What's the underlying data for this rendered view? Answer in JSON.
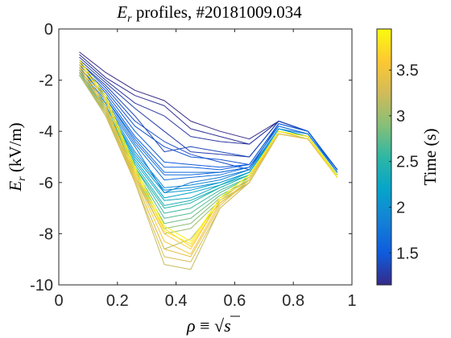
{
  "chart_data": {
    "type": "line",
    "title": {
      "main": "E",
      "sub": "r",
      "rest": " profiles, #20181009.034"
    },
    "xlabel": {
      "rho": "ρ",
      "equiv": " ≡ ",
      "sqrt": "√",
      "s": "s"
    },
    "ylabel": {
      "main": "E",
      "sub": "r",
      "rest": " (kV/m)"
    },
    "xlim": [
      0,
      1
    ],
    "ylim": [
      -10,
      0
    ],
    "xticks": [
      0,
      0.2,
      0.4,
      0.6,
      0.8,
      1
    ],
    "xtick_labels": [
      "0",
      "0.2",
      "0.4",
      "0.6",
      "0.8",
      "1"
    ],
    "yticks": [
      -10,
      -8,
      -6,
      -4,
      -2,
      0
    ],
    "ytick_labels": [
      "-10",
      "-8",
      "-6",
      "-4",
      "-2",
      "0"
    ],
    "grid": false,
    "x": [
      0.07,
      0.16,
      0.26,
      0.36,
      0.45,
      0.55,
      0.65,
      0.75,
      0.85,
      0.95
    ],
    "series": [
      {
        "t": 1.15,
        "values": [
          -0.9,
          -1.7,
          -2.4,
          -2.8,
          -3.6,
          -4.0,
          -4.3,
          -3.6,
          -4.0,
          -5.5
        ]
      },
      {
        "t": 1.2,
        "values": [
          -1.0,
          -1.9,
          -2.6,
          -3.0,
          -3.9,
          -4.2,
          -4.5,
          -3.6,
          -4.0,
          -5.5
        ]
      },
      {
        "t": 1.25,
        "values": [
          -1.1,
          -2.0,
          -2.9,
          -3.4,
          -4.2,
          -4.4,
          -4.5,
          -3.6,
          -4.0,
          -5.5
        ]
      },
      {
        "t": 1.3,
        "values": [
          -1.2,
          -2.1,
          -3.1,
          -4.0,
          -4.8,
          -4.9,
          -5.0,
          -3.6,
          -4.0,
          -5.5
        ]
      },
      {
        "t": 1.35,
        "values": [
          -1.3,
          -2.2,
          -3.4,
          -4.8,
          -4.6,
          -4.8,
          -5.0,
          -3.6,
          -4.0,
          -5.5
        ]
      },
      {
        "t": 1.4,
        "values": [
          -1.3,
          -2.3,
          -3.6,
          -4.4,
          -4.9,
          -5.2,
          -5.5,
          -3.7,
          -4.0,
          -5.5
        ]
      },
      {
        "t": 1.45,
        "values": [
          -1.4,
          -2.4,
          -3.8,
          -4.6,
          -5.0,
          -5.1,
          -5.3,
          -3.7,
          -4.0,
          -5.5
        ]
      },
      {
        "t": 1.5,
        "values": [
          -1.4,
          -2.5,
          -4.0,
          -5.2,
          -5.3,
          -5.4,
          -5.3,
          -3.7,
          -4.0,
          -5.5
        ]
      },
      {
        "t": 1.55,
        "values": [
          -1.5,
          -2.6,
          -4.2,
          -5.4,
          -5.4,
          -5.5,
          -5.3,
          -3.7,
          -4.0,
          -5.6
        ]
      },
      {
        "t": 1.6,
        "values": [
          -1.5,
          -2.7,
          -4.3,
          -5.6,
          -5.6,
          -5.6,
          -5.4,
          -3.8,
          -4.1,
          -5.6
        ]
      },
      {
        "t": 1.65,
        "values": [
          -1.5,
          -2.7,
          -4.4,
          -5.7,
          -5.7,
          -5.6,
          -5.4,
          -3.8,
          -4.1,
          -5.6
        ]
      },
      {
        "t": 1.7,
        "values": [
          -1.6,
          -2.8,
          -4.5,
          -5.9,
          -5.8,
          -5.7,
          -5.4,
          -3.8,
          -4.1,
          -5.6
        ]
      },
      {
        "t": 1.8,
        "values": [
          -1.6,
          -2.9,
          -4.6,
          -6.4,
          -6.0,
          -5.8,
          -5.5,
          -3.9,
          -4.1,
          -5.6
        ]
      },
      {
        "t": 1.9,
        "values": [
          -1.6,
          -2.9,
          -4.8,
          -6.2,
          -6.1,
          -5.9,
          -5.5,
          -3.9,
          -4.2,
          -5.7
        ]
      },
      {
        "t": 2.0,
        "values": [
          -1.7,
          -3.0,
          -4.9,
          -6.3,
          -6.2,
          -6.0,
          -5.6,
          -3.9,
          -4.2,
          -5.7
        ]
      },
      {
        "t": 2.1,
        "values": [
          -1.7,
          -3.0,
          -5.0,
          -6.4,
          -6.3,
          -6.0,
          -5.6,
          -3.9,
          -4.2,
          -5.7
        ]
      },
      {
        "t": 2.2,
        "values": [
          -1.7,
          -3.0,
          -5.1,
          -6.6,
          -6.4,
          -6.1,
          -5.6,
          -4.0,
          -4.2,
          -5.7
        ]
      },
      {
        "t": 2.3,
        "values": [
          -1.7,
          -3.1,
          -5.2,
          -6.7,
          -6.6,
          -6.1,
          -5.7,
          -4.0,
          -4.2,
          -5.7
        ]
      },
      {
        "t": 2.4,
        "values": [
          -1.8,
          -3.1,
          -5.3,
          -6.9,
          -6.7,
          -6.2,
          -5.7,
          -4.0,
          -4.2,
          -5.7
        ]
      },
      {
        "t": 2.5,
        "values": [
          -1.8,
          -3.1,
          -5.4,
          -7.0,
          -6.8,
          -6.2,
          -5.7,
          -4.0,
          -4.2,
          -5.7
        ]
      },
      {
        "t": 2.6,
        "values": [
          -1.8,
          -3.2,
          -5.4,
          -7.2,
          -7.0,
          -6.3,
          -5.8,
          -4.0,
          -4.2,
          -5.7
        ]
      },
      {
        "t": 2.7,
        "values": [
          -1.8,
          -3.2,
          -5.5,
          -7.4,
          -7.2,
          -6.4,
          -5.8,
          -4.0,
          -4.2,
          -5.7
        ]
      },
      {
        "t": 2.8,
        "values": [
          -1.8,
          -3.3,
          -5.6,
          -7.6,
          -7.4,
          -6.5,
          -5.9,
          -4.0,
          -4.3,
          -5.8
        ]
      },
      {
        "t": 2.9,
        "values": [
          -1.8,
          -3.3,
          -5.7,
          -7.8,
          -7.6,
          -6.6,
          -5.9,
          -4.0,
          -4.3,
          -5.8
        ]
      },
      {
        "t": 3.0,
        "values": [
          -1.8,
          -3.3,
          -5.8,
          -8.0,
          -7.8,
          -6.7,
          -6.0,
          -4.1,
          -4.3,
          -5.8
        ]
      },
      {
        "t": 3.1,
        "values": [
          -1.8,
          -3.4,
          -5.9,
          -8.6,
          -8.2,
          -6.8,
          -6.0,
          -4.1,
          -4.3,
          -5.8
        ]
      },
      {
        "t": 3.2,
        "values": [
          -1.7,
          -3.4,
          -6.0,
          -9.2,
          -9.4,
          -7.0,
          -6.0,
          -4.1,
          -4.3,
          -5.8
        ]
      },
      {
        "t": 3.3,
        "values": [
          -1.6,
          -3.3,
          -6.0,
          -8.9,
          -9.1,
          -7.0,
          -6.0,
          -4.1,
          -4.3,
          -5.8
        ]
      },
      {
        "t": 3.4,
        "values": [
          -1.5,
          -3.2,
          -5.9,
          -8.6,
          -8.9,
          -6.9,
          -5.9,
          -4.1,
          -4.3,
          -5.8
        ]
      },
      {
        "t": 3.5,
        "values": [
          -1.5,
          -3.1,
          -5.8,
          -8.3,
          -8.8,
          -6.8,
          -5.9,
          -4.0,
          -4.3,
          -5.8
        ]
      },
      {
        "t": 3.6,
        "values": [
          -1.4,
          -3.0,
          -5.7,
          -8.0,
          -8.6,
          -6.7,
          -5.8,
          -4.0,
          -4.2,
          -5.8
        ]
      },
      {
        "t": 3.7,
        "values": [
          -1.3,
          -2.8,
          -5.6,
          -7.8,
          -8.5,
          -6.7,
          -5.8,
          -4.0,
          -4.2,
          -5.8
        ]
      },
      {
        "t": 3.8,
        "values": [
          -1.3,
          -2.7,
          -5.5,
          -7.9,
          -8.4,
          -6.6,
          -5.7,
          -4.0,
          -4.2,
          -5.8
        ]
      },
      {
        "t": 3.9,
        "values": [
          -1.2,
          -2.6,
          -5.4,
          -7.7,
          -8.3,
          -6.6,
          -5.7,
          -4.0,
          -4.2,
          -5.7
        ]
      }
    ],
    "colorbar": {
      "label": "Time (s)",
      "range": [
        1.15,
        3.95
      ],
      "ticks": [
        1.5,
        2,
        2.5,
        3,
        3.5
      ],
      "tick_labels": [
        "1.5",
        "2",
        "2.5",
        "3",
        "3.5"
      ],
      "colormap": "parula",
      "colormap_stops": [
        "#352a87",
        "#0f5cdd",
        "#1481d6",
        "#06a4ca",
        "#2eb7a4",
        "#87bf77",
        "#d1bb59",
        "#fec832",
        "#f9fb0e"
      ]
    },
    "axis_color": "#262626"
  }
}
